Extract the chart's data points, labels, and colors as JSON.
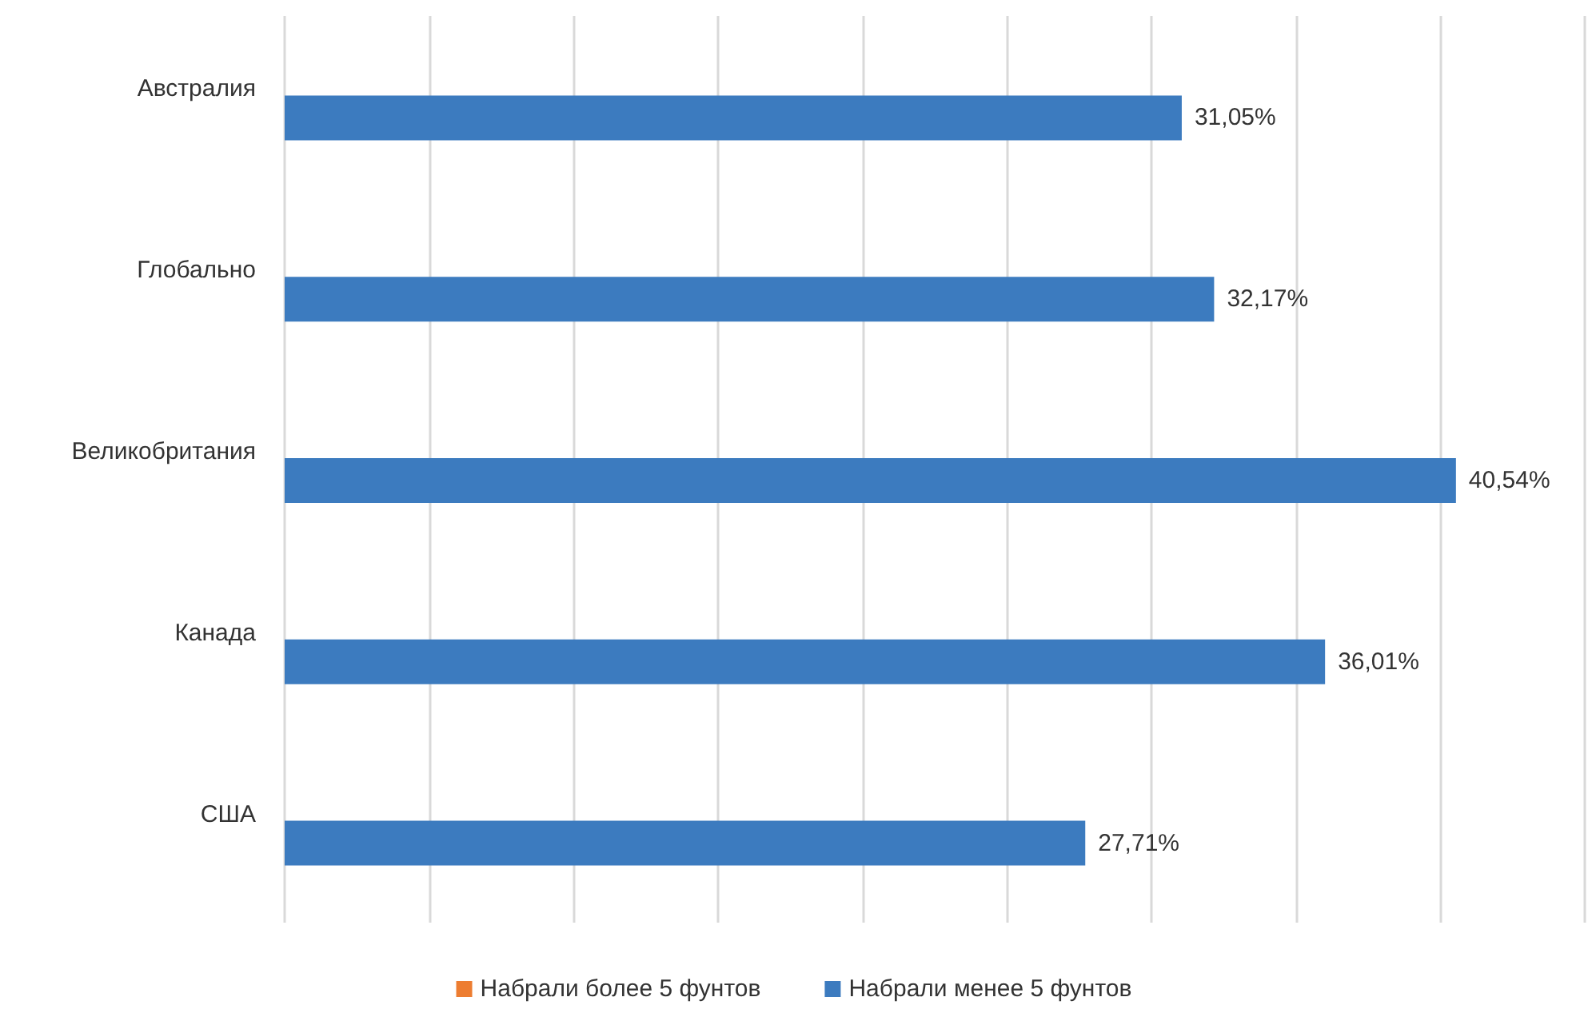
{
  "chart_data": {
    "type": "bar",
    "orientation": "horizontal",
    "categories": [
      "Австралия",
      "Глобально",
      "Великобритания",
      "Канада",
      "США"
    ],
    "series": [
      {
        "name": "Набрали более 5 фунтов",
        "color": "#ed7d31",
        "values": [
          null,
          null,
          null,
          null,
          null
        ]
      },
      {
        "name": "Набрали менее 5 фунтов",
        "color": "#3c7bbf",
        "values": [
          31.05,
          32.17,
          40.54,
          36.01,
          27.71
        ],
        "value_labels": [
          "31,05%",
          "32,17%",
          "40,54%",
          "36,01%",
          "27,71%"
        ]
      }
    ],
    "xlim": [
      0,
      45
    ],
    "xticks": [
      {
        "value": 0,
        "label": null
      },
      {
        "value": 5,
        "label": null
      },
      {
        "value": 10,
        "label": null
      },
      {
        "value": 15,
        "label": null
      },
      {
        "value": 20,
        "label": null
      },
      {
        "value": 25,
        "label": null
      },
      {
        "value": 30,
        "label": null
      },
      {
        "value": 35,
        "label": null
      },
      {
        "value": 40,
        "label": null
      },
      {
        "value": 45,
        "label": null
      }
    ],
    "tick_labels": "y",
    "grid": "x",
    "legend": "bottom"
  }
}
